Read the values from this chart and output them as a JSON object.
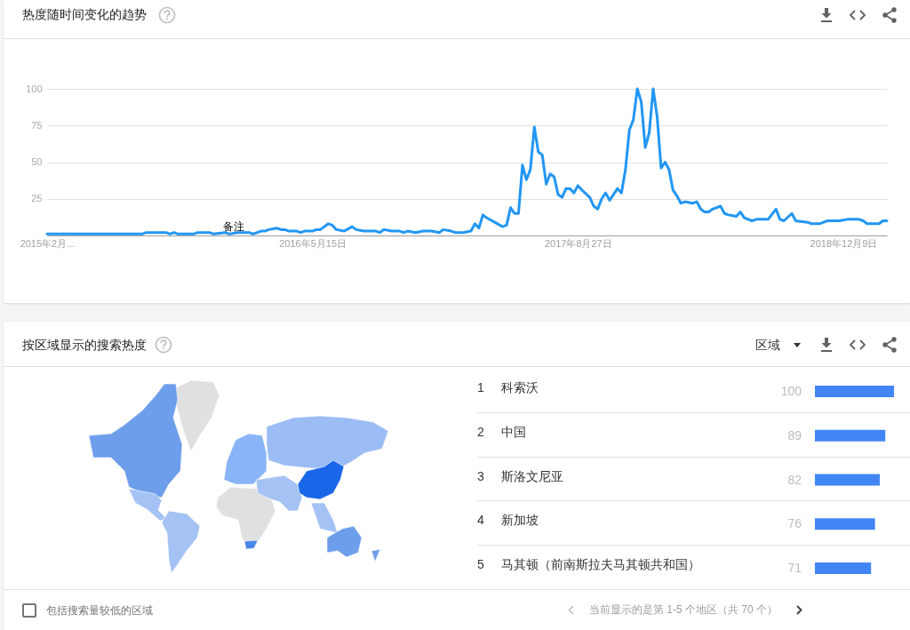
{
  "chart_data": [
    {
      "type": "line",
      "title": "热度随时间变化的趋势",
      "x": [
        "2015-02-01",
        "2015-07-19",
        "2015-07-26",
        "2015-08-30",
        "2015-09-06",
        "2015-09-13",
        "2015-09-20",
        "2015-10-18",
        "2015-10-25",
        "2015-11-15",
        "2015-11-22",
        "2015-12-13",
        "2015-12-20",
        "2016-01-03",
        "2016-01-17",
        "2016-01-24",
        "2016-01-31",
        "2016-02-14",
        "2016-02-21",
        "2016-02-28",
        "2016-03-13",
        "2016-03-20",
        "2016-03-27",
        "2016-04-03",
        "2016-04-17",
        "2016-04-24",
        "2016-05-01",
        "2016-05-15",
        "2016-05-22",
        "2016-05-29",
        "2016-06-12",
        "2016-06-19",
        "2016-06-26",
        "2016-07-10",
        "2016-07-24",
        "2016-07-31",
        "2016-08-14",
        "2016-08-21",
        "2016-09-04",
        "2016-09-11",
        "2016-09-18",
        "2016-10-02",
        "2016-10-16",
        "2016-10-23",
        "2016-10-30",
        "2016-11-13",
        "2016-11-27",
        "2016-12-11",
        "2016-12-25",
        "2017-01-01",
        "2017-01-15",
        "2017-01-22",
        "2017-02-05",
        "2017-02-19",
        "2017-02-26",
        "2017-03-05",
        "2017-03-12",
        "2017-03-19",
        "2017-04-02",
        "2017-04-16",
        "2017-04-23",
        "2017-04-30",
        "2017-05-07",
        "2017-05-14",
        "2017-05-21",
        "2017-05-28",
        "2017-06-04",
        "2017-06-11",
        "2017-06-18",
        "2017-06-25",
        "2017-07-02",
        "2017-07-09",
        "2017-07-16",
        "2017-07-23",
        "2017-07-30",
        "2017-08-06",
        "2017-08-13",
        "2017-08-20",
        "2017-08-27",
        "2017-09-03",
        "2017-09-17",
        "2017-09-24",
        "2017-10-01",
        "2017-10-08",
        "2017-10-15",
        "2017-10-22",
        "2017-10-29",
        "2017-11-05",
        "2017-11-12",
        "2017-11-19",
        "2017-11-26",
        "2017-12-03",
        "2017-12-10",
        "2017-12-17",
        "2017-12-24",
        "2017-12-31",
        "2018-01-07",
        "2018-01-14",
        "2018-01-21",
        "2018-01-28",
        "2018-02-04",
        "2018-02-11",
        "2018-02-18",
        "2018-02-25",
        "2018-03-04",
        "2018-03-18",
        "2018-03-25",
        "2018-04-01",
        "2018-04-08",
        "2018-04-15",
        "2018-04-22",
        "2018-05-06",
        "2018-05-13",
        "2018-05-20",
        "2018-06-03",
        "2018-06-10",
        "2018-06-17",
        "2018-07-01",
        "2018-07-08",
        "2018-07-29",
        "2018-08-12",
        "2018-08-19",
        "2018-08-26",
        "2018-09-09",
        "2018-09-16",
        "2018-10-07",
        "2018-10-14",
        "2018-10-28",
        "2018-11-04",
        "2018-11-11",
        "2018-12-02",
        "2018-12-16",
        "2019-01-06",
        "2019-01-13",
        "2019-01-20",
        "2019-02-10",
        "2019-02-17",
        "2019-02-24"
      ],
      "values": [
        1,
        1,
        2,
        2,
        1,
        2,
        1,
        1,
        2,
        2,
        1,
        2,
        1,
        2,
        2,
        2,
        1,
        3,
        3,
        4,
        5,
        4,
        4,
        3,
        3,
        2,
        3,
        3,
        4,
        4,
        8,
        7,
        4,
        3,
        6,
        4,
        3,
        3,
        3,
        2,
        4,
        3,
        3,
        2,
        3,
        2,
        3,
        3,
        2,
        4,
        3,
        2,
        2,
        3,
        8,
        5,
        14,
        12,
        9,
        6,
        7,
        19,
        15,
        15,
        48,
        38,
        45,
        74,
        57,
        55,
        35,
        42,
        40,
        28,
        26,
        32,
        32,
        29,
        34,
        31,
        26,
        20,
        18,
        25,
        29,
        24,
        28,
        32,
        29,
        45,
        72,
        79,
        100,
        91,
        60,
        70,
        100,
        81,
        46,
        50,
        45,
        31,
        27,
        22,
        23,
        22,
        23,
        18,
        16,
        16,
        18,
        20,
        15,
        14,
        13,
        16,
        12,
        10,
        11,
        11,
        18,
        11,
        10,
        15,
        10,
        9,
        8,
        8,
        9,
        10,
        10,
        11,
        11,
        10,
        8,
        8,
        10,
        10
      ],
      "color": "#2196f3",
      "xlim": [
        "2015-02-01",
        "2019-02-24"
      ],
      "xticks": [
        {
          "value": "2015-02-01",
          "label": "2015年2月..."
        },
        {
          "value": "2016-05-15",
          "label": "2016年5月15日"
        },
        {
          "value": "2017-08-27",
          "label": "2017年8月27日"
        },
        {
          "value": "2018-12-09",
          "label": "2018年12月9日"
        }
      ],
      "ylim": [
        0,
        100
      ],
      "yticks": [
        25,
        50,
        75,
        100
      ],
      "grid": "y",
      "annotations": [
        {
          "text": "备注",
          "x": "2015-12-27",
          "y": 1
        }
      ]
    },
    {
      "type": "bar",
      "orientation": "horizontal",
      "categories": [
        "科索沃",
        "中国",
        "斯洛文尼亚",
        "新加坡",
        "马其顿（前南斯拉夫马其顿共和国）"
      ],
      "values": [
        100,
        89,
        82,
        76,
        71
      ],
      "color": "#4285f4",
      "xlim": [
        0,
        100
      ],
      "data_labels": true,
      "tick_labels": "y",
      "annotations": [
        "1",
        "2",
        "3",
        "4",
        "5",
        "按区域显示的搜索热度",
        "区域",
        "包括搜索量较低的区域",
        "当前显示的是第 1-5 个地区（共 70 个）"
      ]
    }
  ]
}
